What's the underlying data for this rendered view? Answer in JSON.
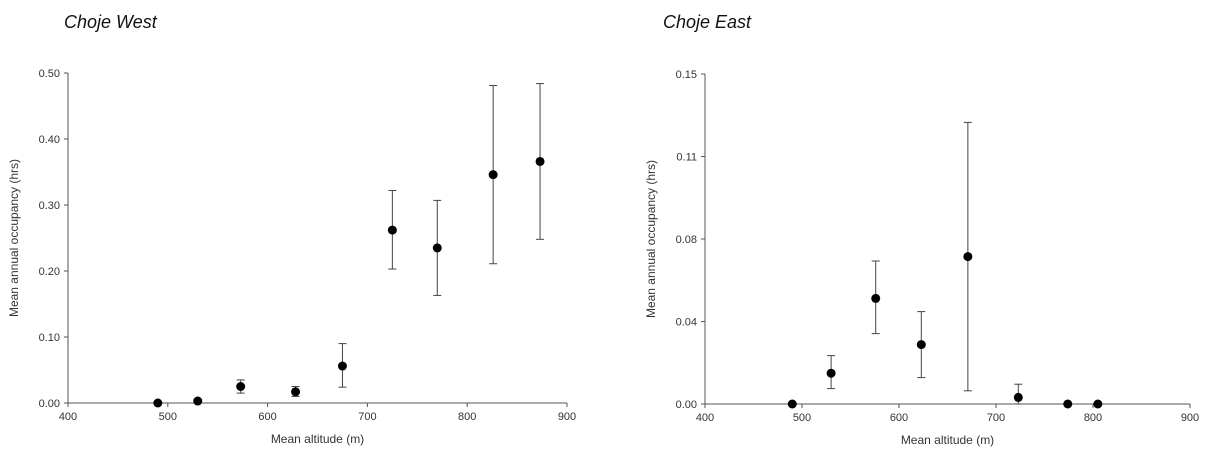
{
  "chart_data": [
    {
      "type": "scatter",
      "title": "Choje West",
      "xlabel": "Mean altitude (m)",
      "ylabel": "Mean annual occupancy (hrs)",
      "xlim": [
        400,
        900
      ],
      "ylim": [
        0,
        0.5
      ],
      "x_ticks": [
        "400",
        "500",
        "600",
        "700",
        "800",
        "900"
      ],
      "y_ticks": [
        "0.00",
        "0.10",
        "0.20",
        "0.30",
        "0.40",
        "0.50"
      ],
      "grid": false,
      "error_bars": true,
      "points": [
        {
          "x": 490,
          "y": 0.0,
          "low": 0.0,
          "high": 0.0
        },
        {
          "x": 530,
          "y": 0.003,
          "low": 0.0,
          "high": 0.006
        },
        {
          "x": 573,
          "y": 0.025,
          "low": 0.015,
          "high": 0.035
        },
        {
          "x": 628,
          "y": 0.017,
          "low": 0.01,
          "high": 0.025
        },
        {
          "x": 675,
          "y": 0.056,
          "low": 0.024,
          "high": 0.09
        },
        {
          "x": 725,
          "y": 0.262,
          "low": 0.203,
          "high": 0.322
        },
        {
          "x": 770,
          "y": 0.235,
          "low": 0.163,
          "high": 0.307
        },
        {
          "x": 826,
          "y": 0.346,
          "low": 0.211,
          "high": 0.481
        },
        {
          "x": 873,
          "y": 0.366,
          "low": 0.248,
          "high": 0.484
        }
      ]
    },
    {
      "type": "scatter",
      "title": "Choje East",
      "xlabel": "Mean altitude (m)",
      "ylabel": "Mean annual occupancy (hrs)",
      "xlim": [
        400,
        900
      ],
      "ylim": [
        0,
        0.15
      ],
      "x_ticks": [
        "400",
        "500",
        "600",
        "700",
        "800",
        "900"
      ],
      "y_ticks": [
        "0.00",
        "0.04",
        "0.08",
        "0.11",
        "0.15"
      ],
      "grid": false,
      "error_bars": true,
      "points": [
        {
          "x": 490,
          "y": 0.0,
          "low": 0.0,
          "high": 0.0
        },
        {
          "x": 530,
          "y": 0.014,
          "low": 0.007,
          "high": 0.022
        },
        {
          "x": 576,
          "y": 0.048,
          "low": 0.032,
          "high": 0.065
        },
        {
          "x": 623,
          "y": 0.027,
          "low": 0.012,
          "high": 0.042
        },
        {
          "x": 671,
          "y": 0.067,
          "low": 0.006,
          "high": 0.128
        },
        {
          "x": 723,
          "y": 0.003,
          "low": 0.0,
          "high": 0.009
        },
        {
          "x": 774,
          "y": 0.0,
          "low": 0.0,
          "high": 0.0
        },
        {
          "x": 805,
          "y": 0.0,
          "low": 0.0,
          "high": 0.0
        }
      ]
    }
  ]
}
